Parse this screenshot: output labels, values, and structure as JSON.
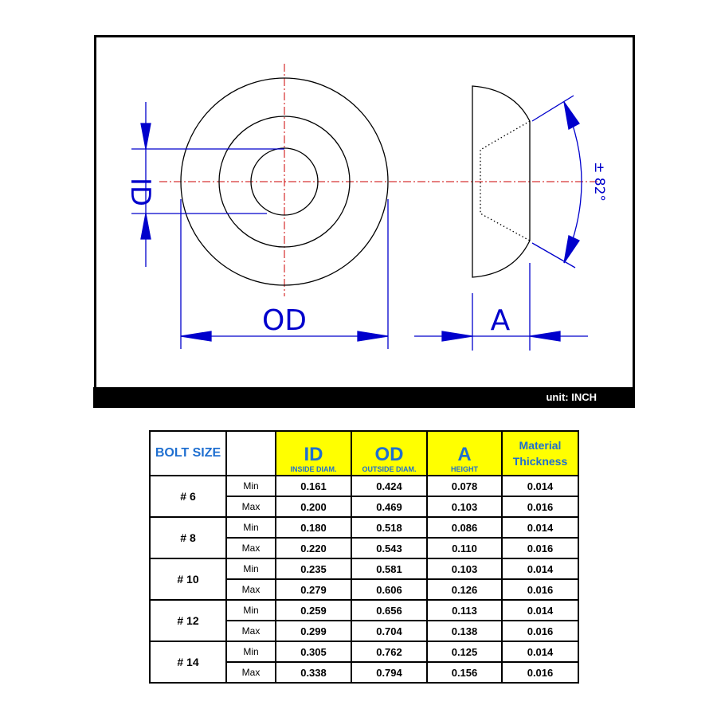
{
  "drawing": {
    "id_label": "ID",
    "od_label": "OD",
    "a_label": "A",
    "angle_label": "± 82°",
    "unit_label": "unit: INCH",
    "dimension_color": "#0000cc",
    "centerline_color": "#cc0000"
  },
  "table": {
    "bolt_size_header": "BOLT SIZE",
    "columns": [
      {
        "title": "ID",
        "subtitle": "INSIDE DIAM."
      },
      {
        "title": "OD",
        "subtitle": "OUTSIDE DIAM."
      },
      {
        "title": "A",
        "subtitle": "HEIGHT"
      },
      {
        "title": "Material Thickness"
      }
    ],
    "rows": [
      {
        "size": "# 6",
        "min_label": "Min",
        "max_label": "Max",
        "min": [
          "0.161",
          "0.424",
          "0.078",
          "0.014"
        ],
        "max": [
          "0.200",
          "0.469",
          "0.103",
          "0.016"
        ]
      },
      {
        "size": "# 8",
        "min_label": "Min",
        "max_label": "Max",
        "min": [
          "0.180",
          "0.518",
          "0.086",
          "0.014"
        ],
        "max": [
          "0.220",
          "0.543",
          "0.110",
          "0.016"
        ]
      },
      {
        "size": "# 10",
        "min_label": "Min",
        "max_label": "Max",
        "min": [
          "0.235",
          "0.581",
          "0.103",
          "0.014"
        ],
        "max": [
          "0.279",
          "0.606",
          "0.126",
          "0.016"
        ]
      },
      {
        "size": "# 12",
        "min_label": "Min",
        "max_label": "Max",
        "min": [
          "0.259",
          "0.656",
          "0.113",
          "0.014"
        ],
        "max": [
          "0.299",
          "0.704",
          "0.138",
          "0.016"
        ]
      },
      {
        "size": "# 14",
        "min_label": "Min",
        "max_label": "Max",
        "min": [
          "0.305",
          "0.762",
          "0.125",
          "0.014"
        ],
        "max": [
          "0.338",
          "0.794",
          "0.156",
          "0.016"
        ]
      }
    ],
    "header_color": "#ffff00",
    "header_text_color": "#1f6fd0"
  }
}
